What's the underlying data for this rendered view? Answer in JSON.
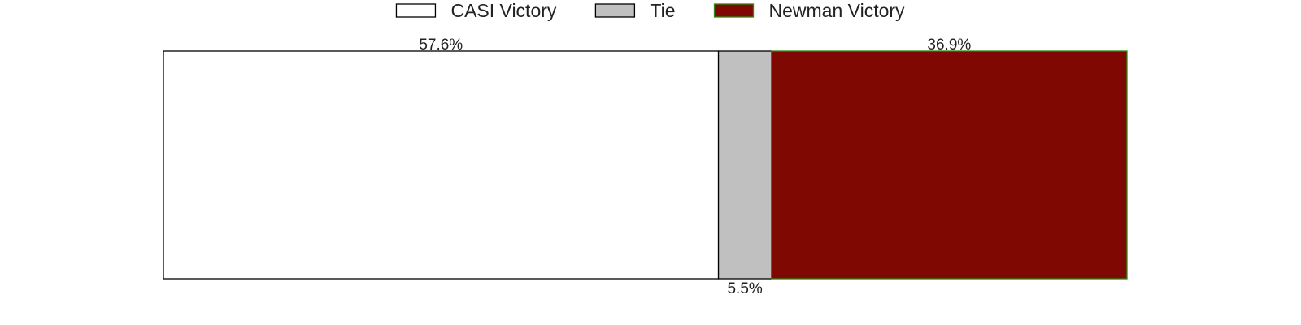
{
  "chart_data": {
    "type": "bar",
    "orientation": "horizontal",
    "stacked": true,
    "categories": [
      ""
    ],
    "series": [
      {
        "name": "CASI Victory",
        "values": [
          57.6
        ],
        "color": "#ffffff",
        "edge_color": "#000000",
        "label": "57.6%",
        "label_position": "above"
      },
      {
        "name": "Tie",
        "values": [
          5.5
        ],
        "color": "#c0c0c0",
        "edge_color": "#000000",
        "label": "5.5%",
        "label_position": "below"
      },
      {
        "name": "Newman Victory",
        "values": [
          36.9
        ],
        "color": "#7f0902",
        "edge_color": "#2d8a12",
        "label": "36.9%",
        "label_position": "above"
      }
    ],
    "xlim": [
      0,
      100
    ],
    "legend_placement": "top-center",
    "grid": false,
    "axes_visible": false,
    "title": "",
    "xlabel": "",
    "ylabel": ""
  }
}
